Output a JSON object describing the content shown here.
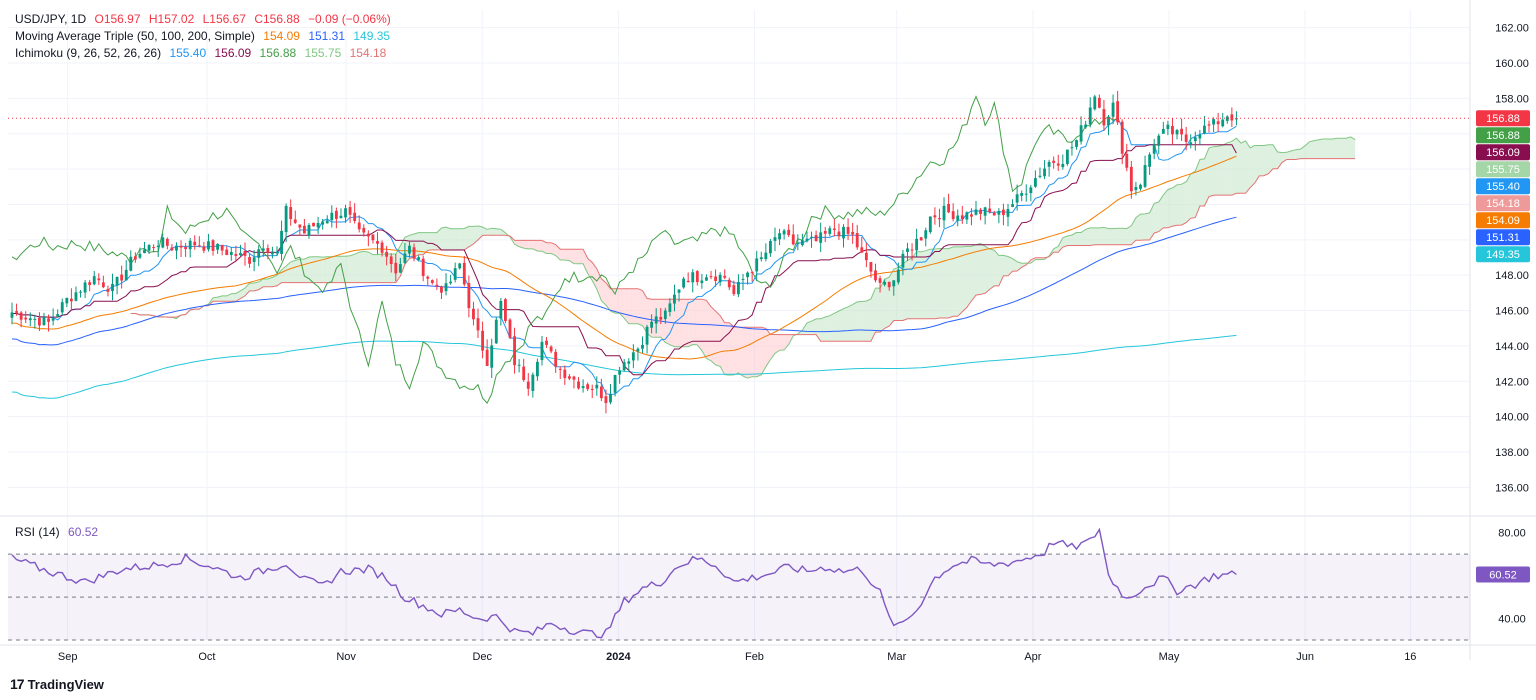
{
  "header": {
    "symbol": "USD/JPY, 1D",
    "open": "O156.97",
    "high": "H157.02",
    "low": "L156.67",
    "close": "C156.88",
    "change": "−0.09 (−0.06%)"
  },
  "ma_legend": {
    "label": "Moving Average Triple (50, 100, 200, Simple)",
    "v50": "154.09",
    "v100": "151.31",
    "v200": "149.35"
  },
  "ichimoku_legend": {
    "label": "Ichimoku (9, 26, 52, 26, 26)",
    "conversion": "155.40",
    "base": "156.09",
    "lagging": "156.88",
    "spanA": "155.75",
    "spanB": "154.18"
  },
  "rsi_legend": {
    "label": "RSI (14)",
    "value": "60.52"
  },
  "footer": {
    "brand": "TradingView"
  },
  "colors": {
    "up": "#089981",
    "down": "#f23645",
    "ma50": "#f57c00",
    "ma100": "#2962ff",
    "ma200": "#26c6da",
    "conversion": "#2196f3",
    "base": "#880e4f",
    "lagging": "#43a047",
    "spanA": "#a5d6a7",
    "spanB": "#ef9a9a",
    "rsi": "#7e57c2"
  },
  "chart_data": [
    {
      "type": "candlestick",
      "title": "USD/JPY, 1D",
      "price_range": [
        135,
        163
      ],
      "y_ticks": [
        136,
        138,
        140,
        142,
        144,
        146,
        148,
        150,
        152,
        154,
        156,
        158,
        160,
        162
      ],
      "x_ticks": [
        "Sep",
        "Oct",
        "Nov",
        "Dec",
        "2024",
        "Feb",
        "Mar",
        "Apr",
        "May",
        "Jun",
        "16"
      ],
      "grid": true,
      "last_price": 156.88,
      "price_labels": [
        {
          "value": "156.88",
          "price": 156.88,
          "color": "#f23645"
        },
        {
          "value": "156.88",
          "price": 156.88,
          "color": "#43a047"
        },
        {
          "value": "156.09",
          "price": 156.09,
          "color": "#880e4f"
        },
        {
          "value": "155.75",
          "price": 155.75,
          "color": "#a5d6a7"
        },
        {
          "value": "155.40",
          "price": 155.4,
          "color": "#2196f3"
        },
        {
          "value": "154.18",
          "price": 154.18,
          "color": "#ef9a9a"
        },
        {
          "value": "154.09",
          "price": 154.09,
          "color": "#f57c00"
        },
        {
          "value": "151.31",
          "price": 151.31,
          "color": "#2962ff"
        },
        {
          "value": "149.35",
          "price": 149.35,
          "color": "#26c6da"
        }
      ],
      "close_anchors": [
        [
          0,
          145.9
        ],
        [
          8,
          145.3
        ],
        [
          12,
          146.6
        ],
        [
          18,
          147.9
        ],
        [
          22,
          147.2
        ],
        [
          27,
          149.1
        ],
        [
          32,
          149.9
        ],
        [
          35,
          149.6
        ],
        [
          40,
          149.8
        ],
        [
          45,
          149.5
        ],
        [
          52,
          148.9
        ],
        [
          55,
          149.8
        ],
        [
          58,
          149.2
        ],
        [
          60,
          151.6
        ],
        [
          64,
          150.4
        ],
        [
          68,
          151.2
        ],
        [
          73,
          151.6
        ],
        [
          76,
          150.3
        ],
        [
          81,
          149.6
        ],
        [
          84,
          148.3
        ],
        [
          87,
          149.5
        ],
        [
          92,
          147.5
        ],
        [
          95,
          147.2
        ],
        [
          98,
          148.6
        ],
        [
          101,
          145.3
        ],
        [
          104,
          143.2
        ],
        [
          107,
          146.4
        ],
        [
          110,
          143.1
        ],
        [
          113,
          141.9
        ],
        [
          116,
          144.2
        ],
        [
          120,
          142.7
        ],
        [
          124,
          141.9
        ],
        [
          128,
          141.6
        ],
        [
          130,
          141.0
        ],
        [
          133,
          142.9
        ],
        [
          137,
          143.9
        ],
        [
          140,
          145.4
        ],
        [
          143,
          145.7
        ],
        [
          147,
          147.9
        ],
        [
          150,
          147.9
        ],
        [
          152,
          148.1
        ],
        [
          156,
          147.9
        ],
        [
          158,
          146.9
        ],
        [
          161,
          148.2
        ],
        [
          164,
          148.9
        ],
        [
          168,
          150.4
        ],
        [
          171,
          149.8
        ],
        [
          176,
          149.9
        ],
        [
          180,
          150.6
        ],
        [
          184,
          150.2
        ],
        [
          186,
          149.1
        ],
        [
          190,
          147.3
        ],
        [
          193,
          147.8
        ],
        [
          196,
          149.4
        ],
        [
          199,
          150.2
        ],
        [
          201,
          151.3
        ],
        [
          204,
          151.6
        ],
        [
          208,
          151.4
        ],
        [
          212,
          151.6
        ],
        [
          216,
          151.4
        ],
        [
          220,
          152.3
        ],
        [
          223,
          153.2
        ],
        [
          227,
          154.4
        ],
        [
          230,
          154.6
        ],
        [
          233,
          155.6
        ],
        [
          235,
          156.8
        ],
        [
          237,
          158.3
        ],
        [
          239,
          156.8
        ],
        [
          241,
          157.6
        ],
        [
          243,
          155.2
        ],
        [
          245,
          152.9
        ],
        [
          247,
          153.3
        ],
        [
          250,
          155.6
        ],
        [
          253,
          156.2
        ],
        [
          257,
          155.6
        ],
        [
          260,
          156.2
        ],
        [
          263,
          156.5
        ],
        [
          266,
          157.1
        ],
        [
          268,
          156.88
        ]
      ]
    },
    {
      "type": "line",
      "title": "RSI (14)",
      "ylim": [
        30,
        85
      ],
      "y_ticks": [
        40,
        80
      ],
      "bands": [
        30,
        50,
        70
      ],
      "last_value": 60.52,
      "rsi_anchors": [
        [
          0,
          68
        ],
        [
          8,
          62
        ],
        [
          16,
          57
        ],
        [
          24,
          63
        ],
        [
          32,
          65
        ],
        [
          38,
          68
        ],
        [
          44,
          64
        ],
        [
          50,
          59
        ],
        [
          56,
          63
        ],
        [
          60,
          66
        ],
        [
          64,
          58
        ],
        [
          68,
          55
        ],
        [
          72,
          62
        ],
        [
          78,
          63
        ],
        [
          82,
          59
        ],
        [
          86,
          50
        ],
        [
          90,
          46
        ],
        [
          94,
          42
        ],
        [
          98,
          44
        ],
        [
          102,
          40
        ],
        [
          106,
          41
        ],
        [
          110,
          34
        ],
        [
          114,
          33
        ],
        [
          118,
          38
        ],
        [
          122,
          35
        ],
        [
          126,
          33
        ],
        [
          130,
          33
        ],
        [
          134,
          48
        ],
        [
          138,
          54
        ],
        [
          142,
          57
        ],
        [
          146,
          65
        ],
        [
          150,
          68
        ],
        [
          154,
          65
        ],
        [
          158,
          57
        ],
        [
          162,
          59
        ],
        [
          166,
          61
        ],
        [
          170,
          64
        ],
        [
          174,
          62
        ],
        [
          178,
          64
        ],
        [
          182,
          62
        ],
        [
          186,
          63
        ],
        [
          190,
          52
        ],
        [
          192,
          40
        ],
        [
          194,
          36
        ],
        [
          198,
          44
        ],
        [
          202,
          59
        ],
        [
          206,
          65
        ],
        [
          210,
          67
        ],
        [
          214,
          65
        ],
        [
          218,
          66
        ],
        [
          222,
          68
        ],
        [
          226,
          71
        ],
        [
          228,
          76
        ],
        [
          232,
          73
        ],
        [
          236,
          76
        ],
        [
          238,
          82
        ],
        [
          240,
          60
        ],
        [
          244,
          49
        ],
        [
          248,
          55
        ],
        [
          252,
          59
        ],
        [
          255,
          53
        ],
        [
          259,
          56
        ],
        [
          263,
          60
        ],
        [
          268,
          60.52
        ]
      ]
    }
  ]
}
